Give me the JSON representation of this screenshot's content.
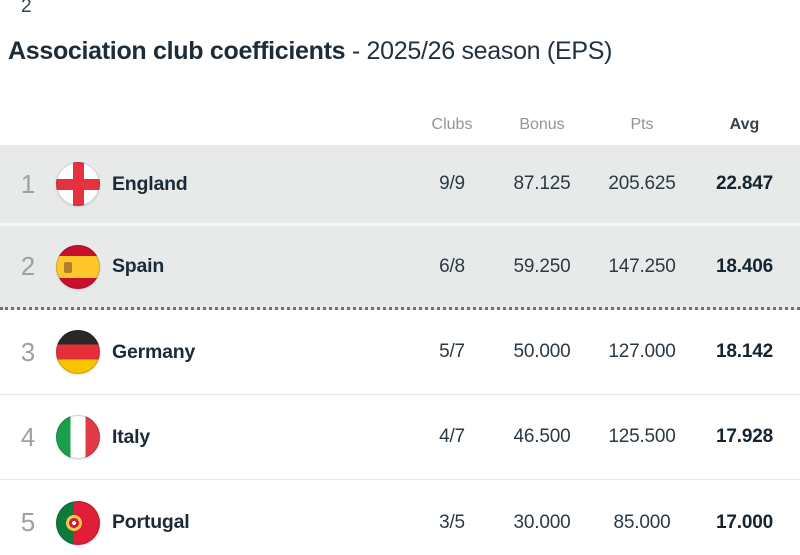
{
  "artifact": {
    "top_left_clipped_text": "2"
  },
  "title": {
    "main": "Association club coefficients",
    "suffix": "- 2025/26 season (EPS)"
  },
  "colors": {
    "highlight_row_bg": "#e8eaea",
    "cutoff_dotted_line": "#6b727a",
    "header_text": "#8e959b",
    "primary_text": "#1d2c39",
    "rank_text": "#9aa1a7"
  },
  "table": {
    "columns": [
      {
        "key": "clubs",
        "label": "Clubs"
      },
      {
        "key": "bonus",
        "label": "Bonus"
      },
      {
        "key": "pts",
        "label": "Pts"
      },
      {
        "key": "avg",
        "label": "Avg"
      }
    ],
    "rows": [
      {
        "rank": "1",
        "country": "England",
        "flag": "england",
        "clubs": "9/9",
        "bonus": "87.125",
        "pts": "205.625",
        "avg": "22.847",
        "highlighted": true,
        "cutoff_below": false
      },
      {
        "rank": "2",
        "country": "Spain",
        "flag": "spain",
        "clubs": "6/8",
        "bonus": "59.250",
        "pts": "147.250",
        "avg": "18.406",
        "highlighted": true,
        "cutoff_below": true
      },
      {
        "rank": "3",
        "country": "Germany",
        "flag": "germany",
        "clubs": "5/7",
        "bonus": "50.000",
        "pts": "127.000",
        "avg": "18.142",
        "highlighted": false,
        "cutoff_below": false
      },
      {
        "rank": "4",
        "country": "Italy",
        "flag": "italy",
        "clubs": "4/7",
        "bonus": "46.500",
        "pts": "125.500",
        "avg": "17.928",
        "highlighted": false,
        "cutoff_below": false
      },
      {
        "rank": "5",
        "country": "Portugal",
        "flag": "portugal",
        "clubs": "3/5",
        "bonus": "30.000",
        "pts": "85.000",
        "avg": "17.000",
        "highlighted": false,
        "cutoff_below": false
      }
    ]
  }
}
